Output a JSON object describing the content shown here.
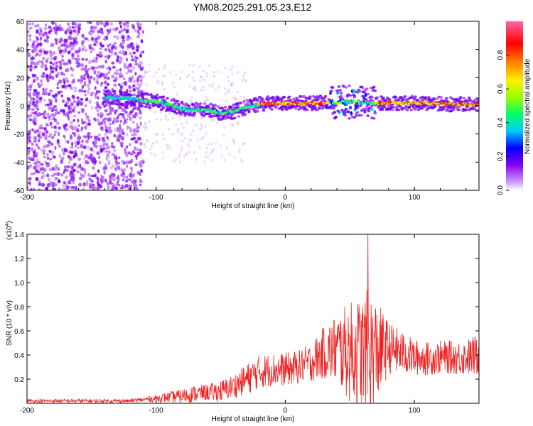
{
  "title": "YM08.2025.291.05.23.E12",
  "chart_data": [
    {
      "type": "heatmap",
      "name": "spectrogram",
      "xlabel": "Height of straight line (km)",
      "ylabel": "Frequency (Hz)",
      "xlim": [
        -200,
        150
      ],
      "ylim": [
        -60,
        60
      ],
      "xticks": [
        -200,
        -100,
        0,
        100
      ],
      "yticks": [
        60,
        40,
        20,
        0,
        -20,
        -40,
        -60
      ],
      "ridge": {
        "x": [
          -140,
          -120,
          -100,
          -90,
          -80,
          -70,
          -60,
          -50,
          -40,
          -30,
          -20,
          -10,
          0,
          20,
          40,
          50,
          60,
          70,
          90,
          110,
          130,
          150
        ],
        "y": [
          6,
          5,
          3,
          1,
          -2,
          -3,
          -3,
          -5,
          -4,
          -1,
          1,
          2,
          2,
          2,
          2,
          3,
          2,
          2,
          2,
          2,
          1,
          1
        ]
      },
      "colorbar": {
        "label": "Normalized spectral amplitude",
        "range": [
          0,
          1
        ],
        "ticks": [
          0.0,
          0.2,
          0.4,
          0.6,
          0.8
        ],
        "colors": [
          "#ffffff",
          "#cc99ff",
          "#8800ee",
          "#0000ff",
          "#00ccff",
          "#00ff66",
          "#99ff00",
          "#ffee00",
          "#ff8800",
          "#ff0000",
          "#ff66aa"
        ]
      }
    },
    {
      "type": "line",
      "name": "snr",
      "xlabel": "Height of straight line (km)",
      "ylabel": "SNR (10 * v/v)",
      "multiplier": "(x10",
      "multiplier_exp": "4",
      "multiplier_close": ")",
      "xlim": [
        -200,
        150
      ],
      "ylim": [
        0,
        1.4
      ],
      "xticks": [
        -200,
        -100,
        0,
        100
      ],
      "yticks": [
        0.2,
        0.4,
        0.6,
        0.8,
        1.0,
        1.2,
        1.4
      ],
      "line_color": "#ee2222",
      "envelope": {
        "x": [
          -200,
          -120,
          -110,
          -100,
          -80,
          -70,
          -60,
          -50,
          -40,
          -30,
          -20,
          -10,
          0,
          10,
          20,
          30,
          40,
          50,
          60,
          64,
          70,
          80,
          90,
          100,
          110,
          120,
          130,
          140,
          150
        ],
        "base": [
          0.02,
          0.02,
          0.03,
          0.04,
          0.06,
          0.08,
          0.09,
          0.1,
          0.14,
          0.2,
          0.26,
          0.28,
          0.28,
          0.3,
          0.34,
          0.42,
          0.45,
          0.42,
          0.42,
          0.4,
          0.42,
          0.46,
          0.42,
          0.38,
          0.37,
          0.38,
          0.38,
          0.38,
          0.4
        ],
        "amp": [
          0.015,
          0.015,
          0.02,
          0.03,
          0.06,
          0.07,
          0.07,
          0.09,
          0.1,
          0.13,
          0.14,
          0.14,
          0.14,
          0.14,
          0.16,
          0.22,
          0.3,
          0.42,
          0.48,
          0.55,
          0.45,
          0.22,
          0.18,
          0.15,
          0.14,
          0.14,
          0.14,
          0.15,
          0.18
        ]
      },
      "peak": {
        "x": 64,
        "y": 1.4
      }
    }
  ]
}
